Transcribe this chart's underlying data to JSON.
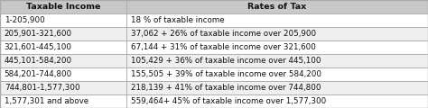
{
  "headers": [
    "Taxable Income",
    "Rates of Tax"
  ],
  "rows": [
    [
      "1-205,900",
      "18 % of taxable income"
    ],
    [
      "205,901-321,600",
      "37,062 + 26% of taxable income over 205,900"
    ],
    [
      "321,601-445,100",
      "67,144 + 31% of taxable income over 321,600"
    ],
    [
      "445,101-584,200",
      "105,429 + 36% of taxable income over 445,100"
    ],
    [
      "584,201-744,800",
      "155,505 + 39% of taxable income over 584,200"
    ],
    [
      "744,801-1,577,300",
      "218,139 + 41% of taxable income over 744,800"
    ],
    [
      "1,577,301 and above",
      "559,464+ 45% of taxable income over 1,577,300"
    ]
  ],
  "header_bg": "#c8c8c8",
  "row_bg_white": "#ffffff",
  "row_bg_gray": "#efefef",
  "border_color": "#aaaaaa",
  "header_fontsize": 6.8,
  "row_fontsize": 6.3,
  "col_split": 0.295,
  "figure_bg": "#ffffff",
  "fig_width": 4.74,
  "fig_height": 1.2,
  "dpi": 100
}
